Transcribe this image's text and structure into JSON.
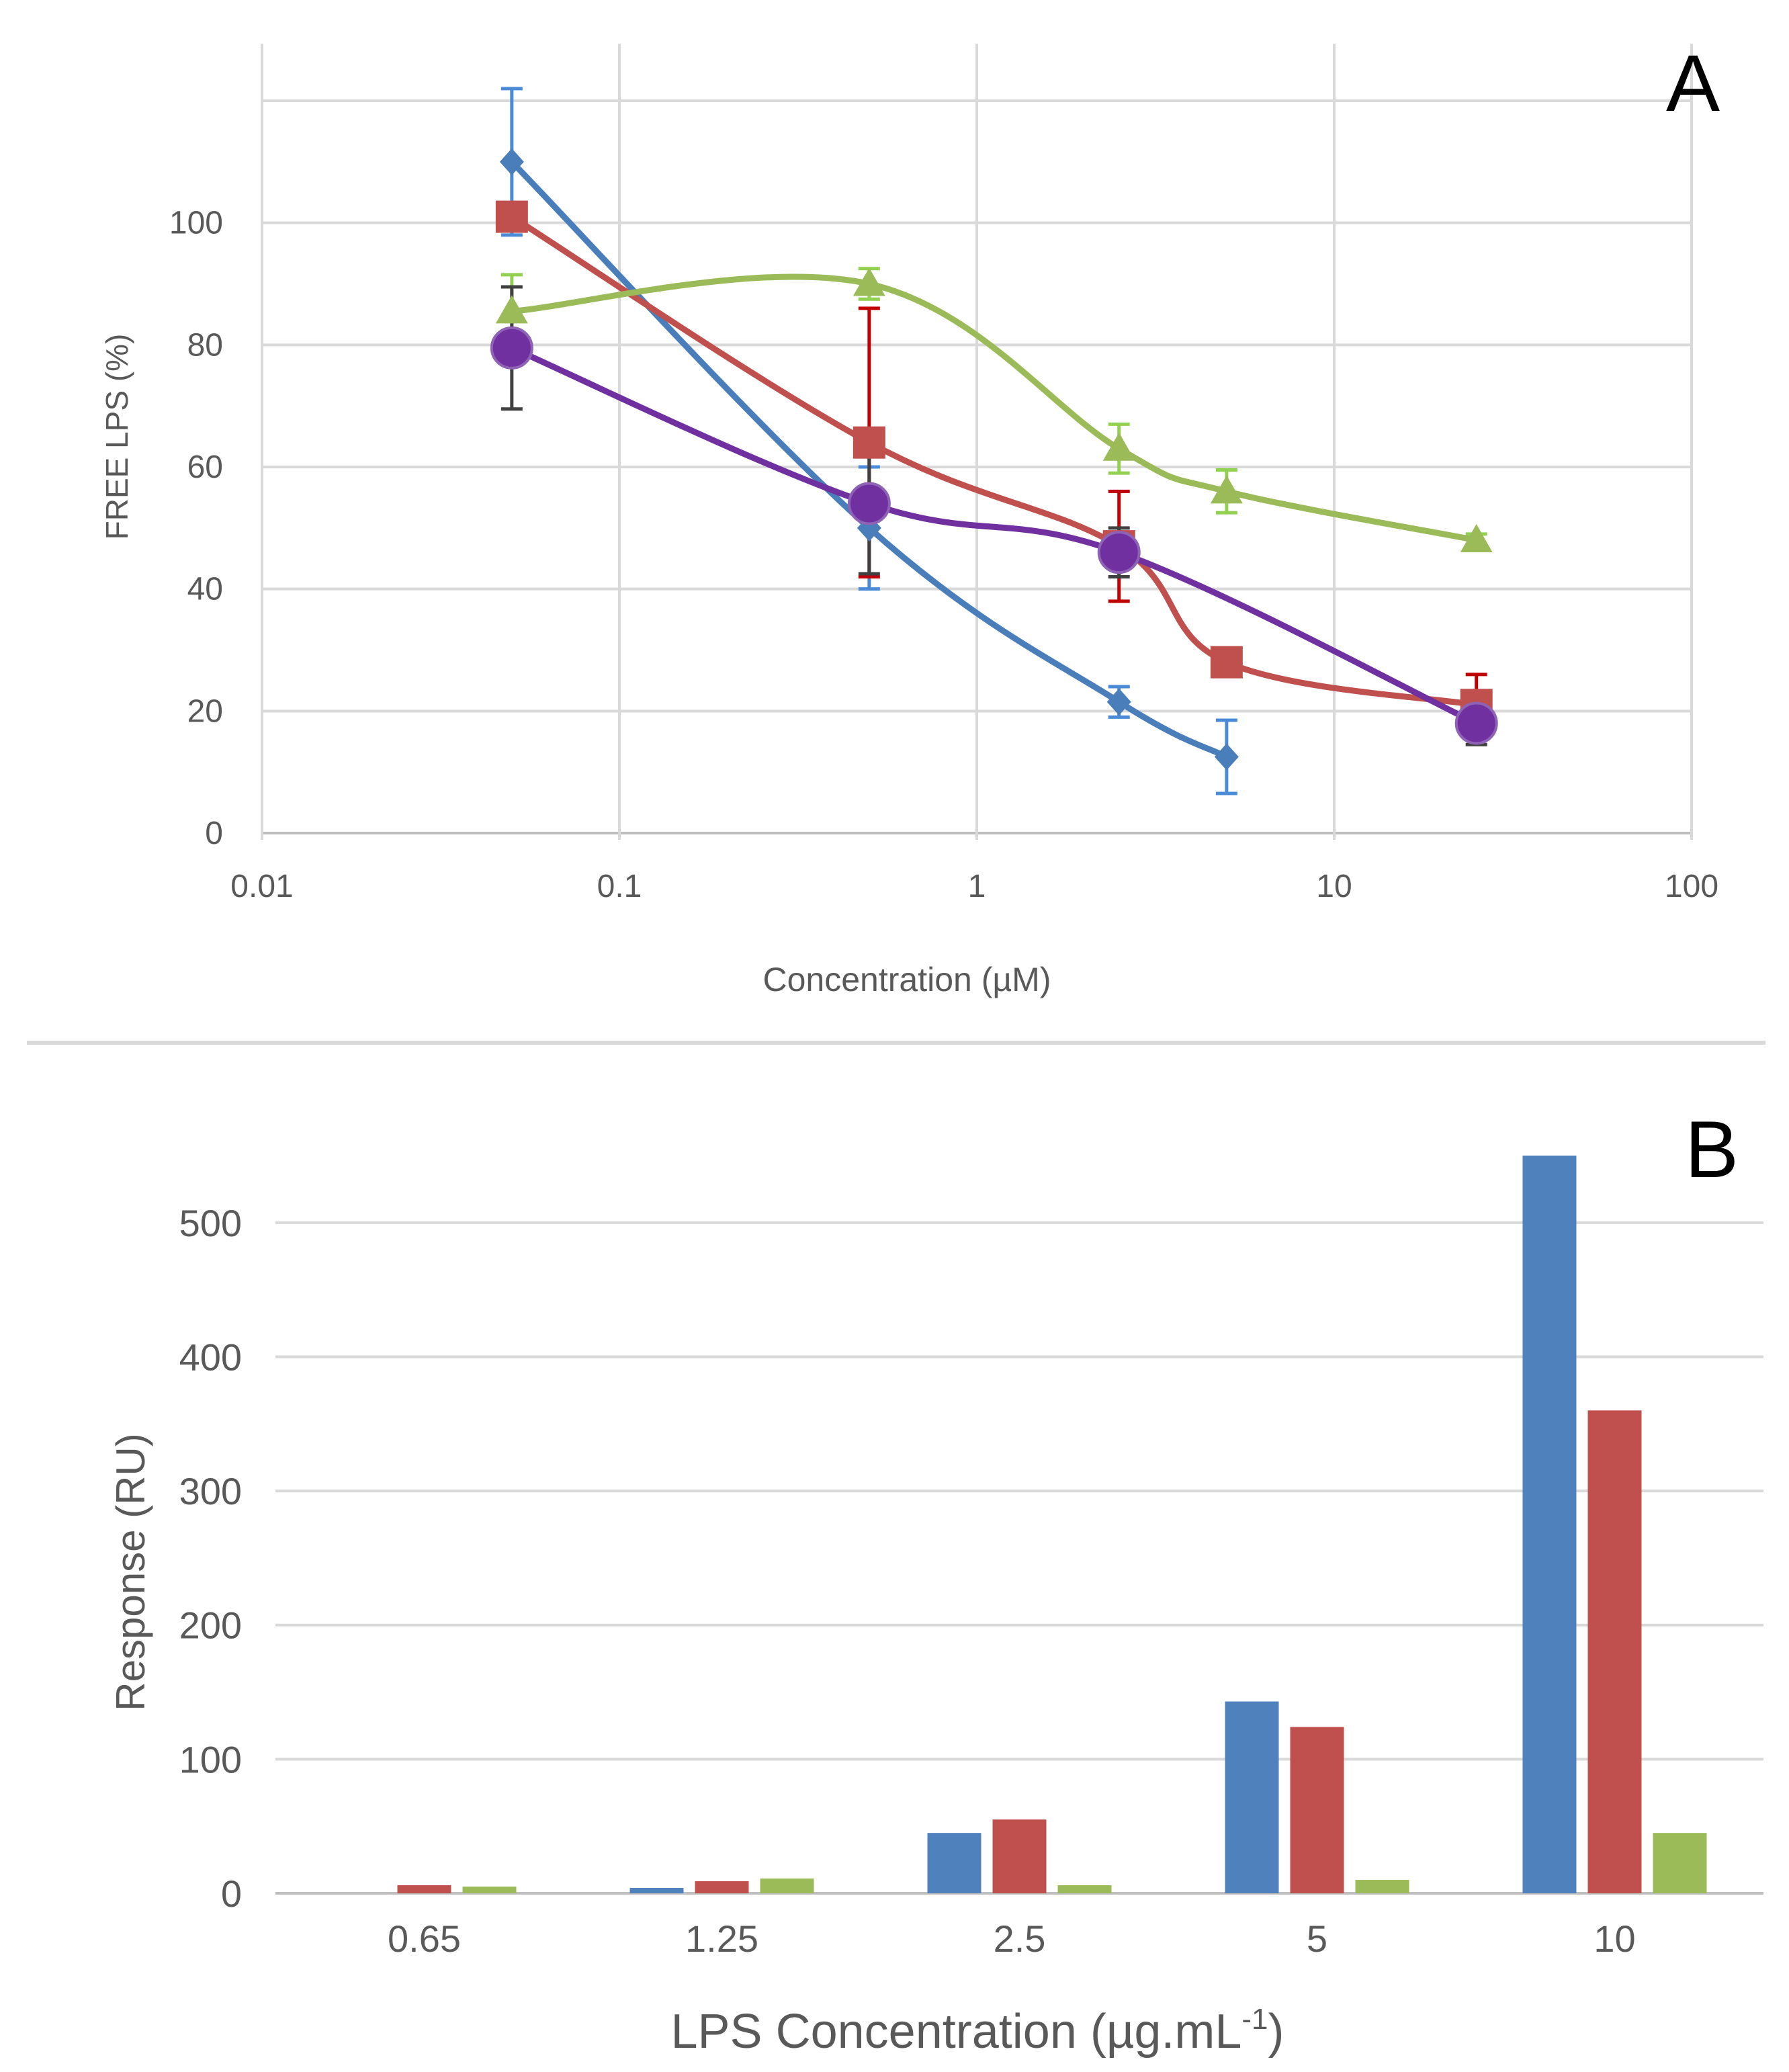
{
  "figure": {
    "divider": "panel-separator"
  },
  "chart_data": [
    {
      "panel": "A",
      "type": "line",
      "title": "",
      "xlabel": "Concentration (µM)",
      "ylabel": "FREE LPS (%)",
      "xscale": "log",
      "xlim": [
        0.01,
        100
      ],
      "ylim": [
        0,
        120
      ],
      "xticks": [
        "0.01",
        "0.1",
        "1",
        "10",
        "100"
      ],
      "yticks": [
        "0",
        "20",
        "40",
        "60",
        "80",
        "100"
      ],
      "grid": true,
      "legend": "none",
      "series": [
        {
          "name": "series-1",
          "color": "#4a7ebb",
          "errcolor": "#4a8ad6",
          "marker": "diamond",
          "x": [
            0.05,
            0.5,
            2.5,
            5
          ],
          "y": [
            110,
            50,
            21.5,
            12.5
          ],
          "err": [
            12,
            10,
            2.5,
            6
          ]
        },
        {
          "name": "series-2",
          "color": "#c0504d",
          "errcolor": "#c00000",
          "marker": "square",
          "x": [
            0.05,
            0.5,
            2.5,
            5,
            25
          ],
          "y": [
            101,
            64,
            47,
            28,
            21
          ],
          "err": [
            2,
            22,
            9,
            2,
            5
          ]
        },
        {
          "name": "series-3",
          "color": "#9bbb59",
          "errcolor": "#92d050",
          "marker": "triangle",
          "x": [
            0.05,
            0.5,
            2.5,
            5,
            25
          ],
          "y": [
            85.5,
            90,
            63,
            56,
            48
          ],
          "err": [
            6,
            2.5,
            4,
            3.5,
            1
          ]
        },
        {
          "name": "series-4",
          "color": "#7030a0",
          "errcolor": "#404040",
          "marker": "circle",
          "x": [
            0.05,
            0.5,
            2.5,
            25
          ],
          "y": [
            79.5,
            54,
            46,
            18
          ],
          "err": [
            10,
            11.5,
            4,
            3.5
          ]
        }
      ]
    },
    {
      "panel": "B",
      "type": "bar",
      "title": "",
      "xlabel": "LPS Concentration (µg.mL",
      "xlabel_sup": "-1",
      "xlabel_close": ")",
      "ylabel": "Response (RU)",
      "categories": [
        "0.65",
        "1.25",
        "2.5",
        "5",
        "10"
      ],
      "ylim": [
        0,
        550
      ],
      "yticks": [
        "0",
        "100",
        "200",
        "300",
        "400",
        "500"
      ],
      "grid": true,
      "legend": "none",
      "series": [
        {
          "name": "series-1",
          "color": "#4f81bd",
          "values": [
            0,
            4,
            45,
            143,
            550
          ]
        },
        {
          "name": "series-2",
          "color": "#c0504d",
          "values": [
            6,
            9,
            55,
            124,
            360
          ]
        },
        {
          "name": "series-3",
          "color": "#9bbb59",
          "values": [
            5,
            11,
            6,
            10,
            45
          ]
        }
      ]
    }
  ]
}
